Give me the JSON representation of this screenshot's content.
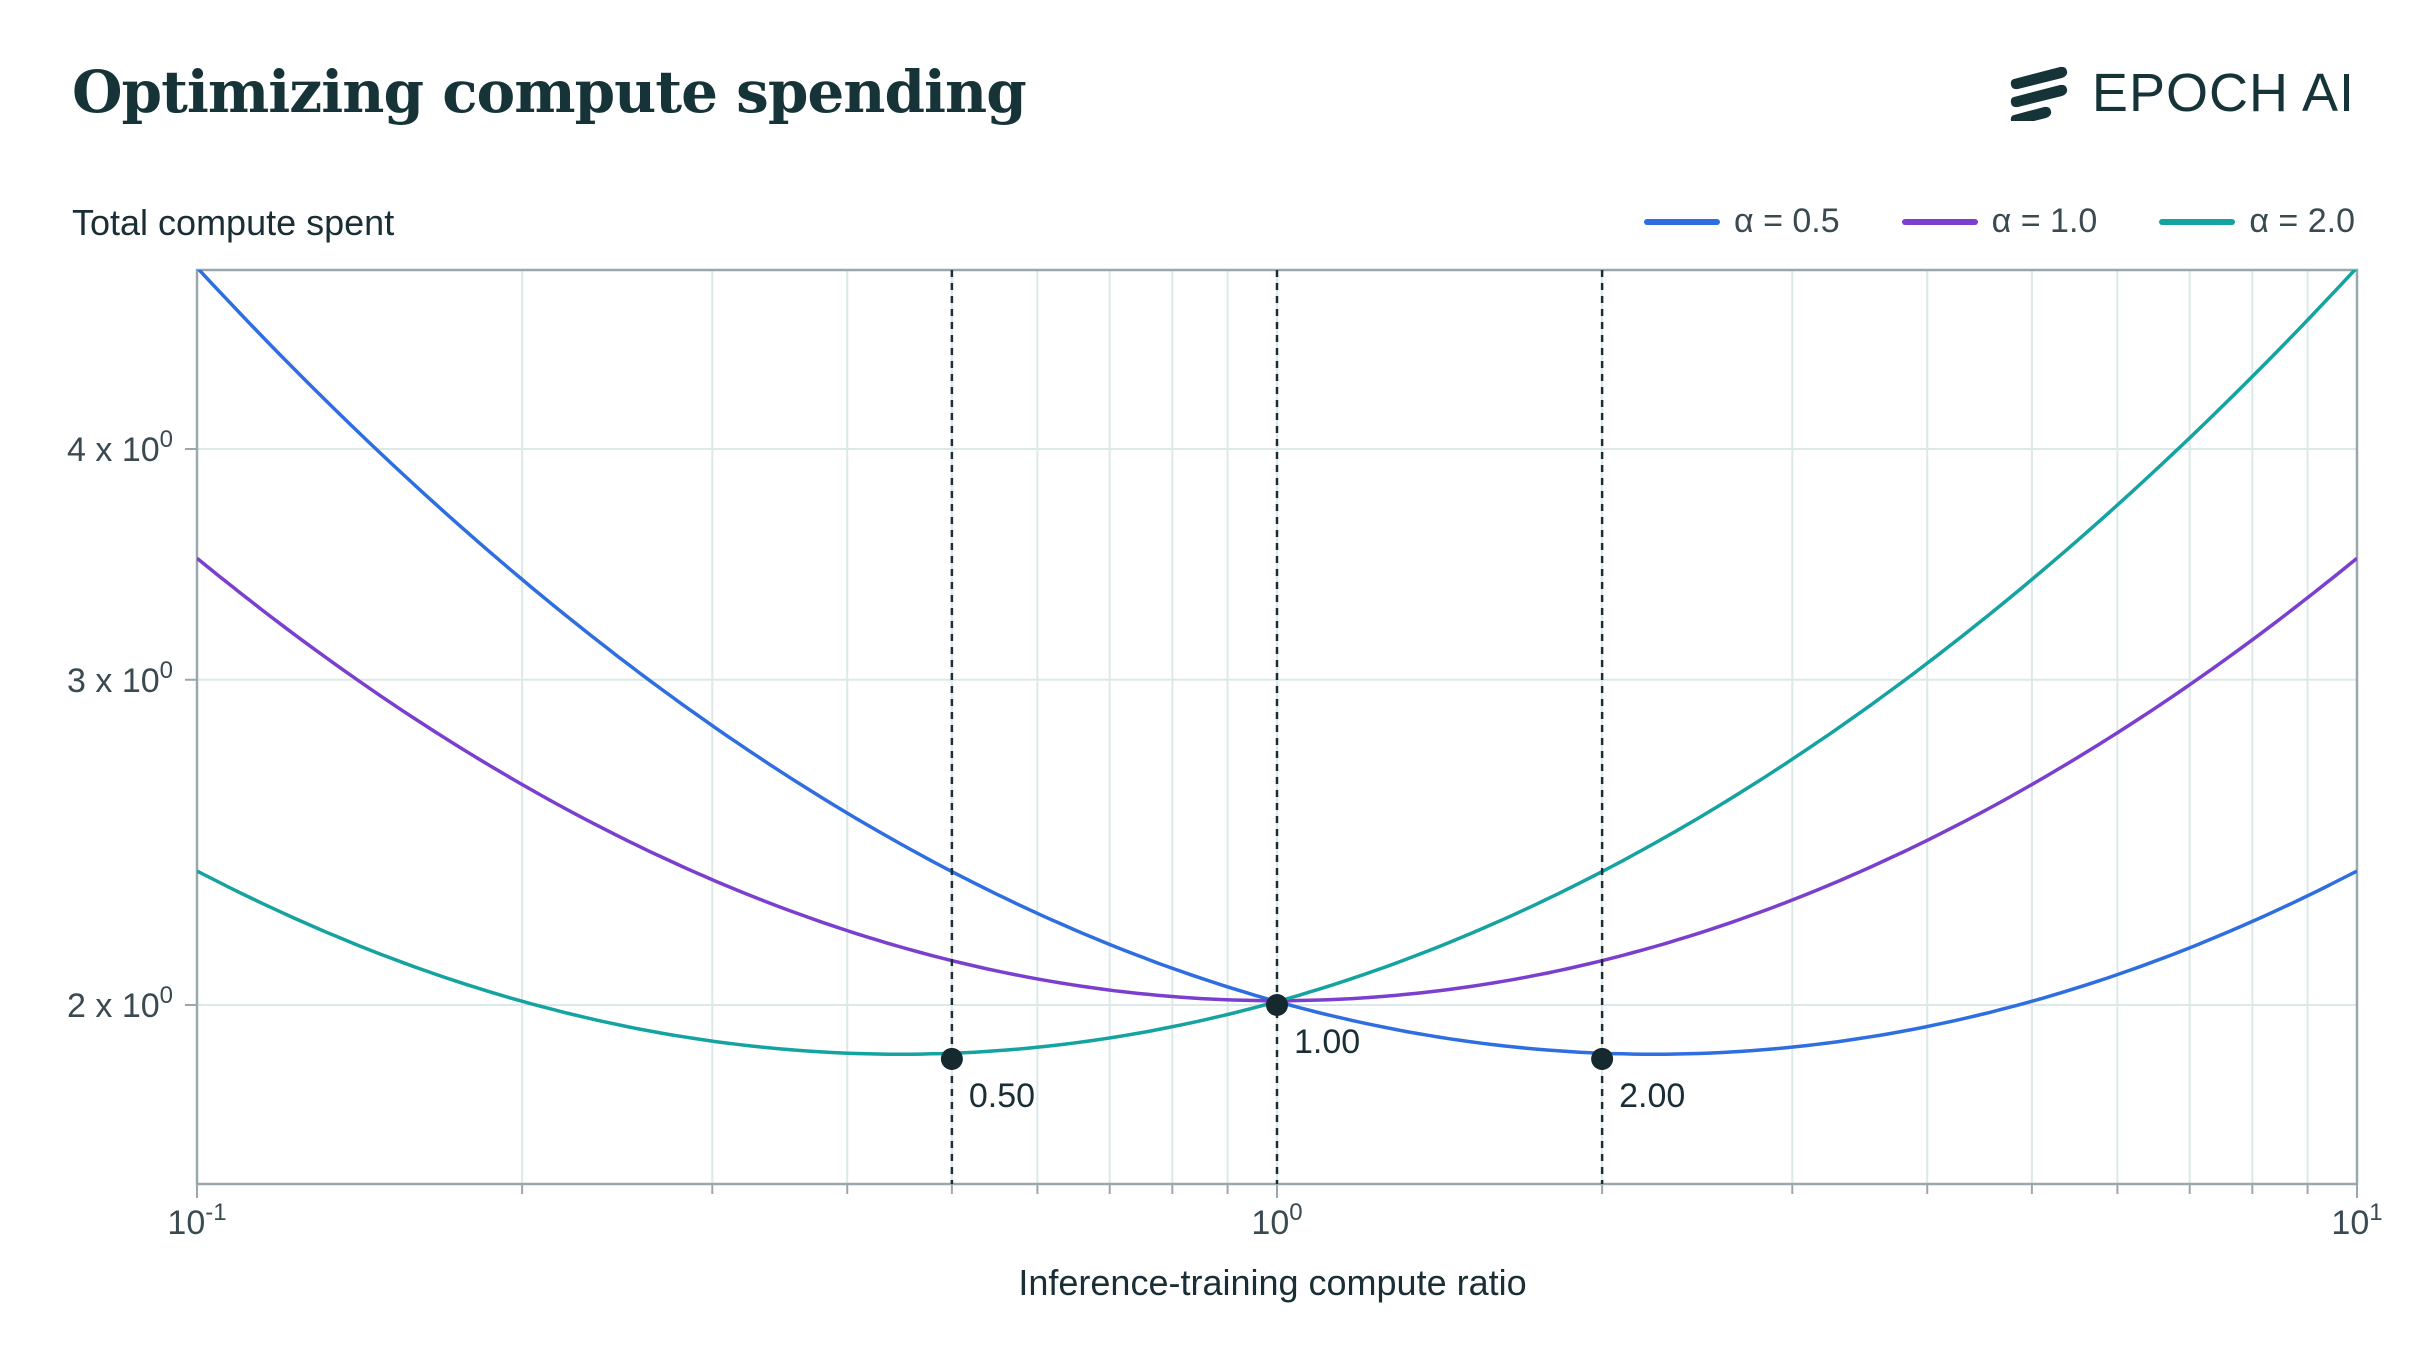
{
  "title": "Optimizing compute spending",
  "brand": {
    "name": "EPOCH AI",
    "icon": "epoch-stripes-icon"
  },
  "colors": {
    "alpha_05": "#2f6ee0",
    "alpha_10": "#7b3fcf",
    "alpha_20": "#14a3a0",
    "grid": "#dde8e8",
    "axis": "#9aa8ad",
    "text": "#1a2e35"
  },
  "chart_data": {
    "type": "line",
    "title": "Optimizing compute spending",
    "xlabel": "Inference-training compute ratio",
    "ylabel": "Total compute spent",
    "x_scale": "log",
    "y_scale": "log",
    "xlim": [
      0.1,
      10
    ],
    "ylim": [
      1.6,
      5.0
    ],
    "x_ticks": [
      {
        "value": 0.1,
        "base": "10",
        "exp": "-1"
      },
      {
        "value": 1,
        "base": "10",
        "exp": "0"
      },
      {
        "value": 10,
        "base": "10",
        "exp": "1"
      }
    ],
    "y_ticks": [
      {
        "value": 2,
        "mant": "2 x 10",
        "exp": "0"
      },
      {
        "value": 3,
        "mant": "3 x 10",
        "exp": "0"
      },
      {
        "value": 4,
        "mant": "4 x 10",
        "exp": "0"
      }
    ],
    "legend_position": "top-right",
    "grid": true,
    "series": [
      {
        "name": "α = 0.5",
        "alpha": 0.5,
        "color": "#2f6ee0"
      },
      {
        "name": "α = 1.0",
        "alpha": 1.0,
        "color": "#7b3fcf"
      },
      {
        "name": "α = 2.0",
        "alpha": 2.0,
        "color": "#14a3a0"
      }
    ],
    "curve_samples": {
      "x": [
        0.1,
        0.5,
        1,
        2,
        10
      ],
      "alpha_0.5": [
        5.0,
        2.39,
        2.0,
        1.87,
        2.37
      ],
      "alpha_1.0": [
        3.49,
        2.12,
        2.0,
        2.12,
        3.49
      ],
      "alpha_2.0": [
        2.37,
        1.87,
        2.0,
        2.39,
        5.0
      ]
    },
    "minima": [
      {
        "x": 0.5,
        "y": 1.87,
        "label": "0.50"
      },
      {
        "x": 1.0,
        "y": 2.0,
        "label": "1.00"
      },
      {
        "x": 2.0,
        "y": 1.87,
        "label": "2.00"
      }
    ]
  }
}
